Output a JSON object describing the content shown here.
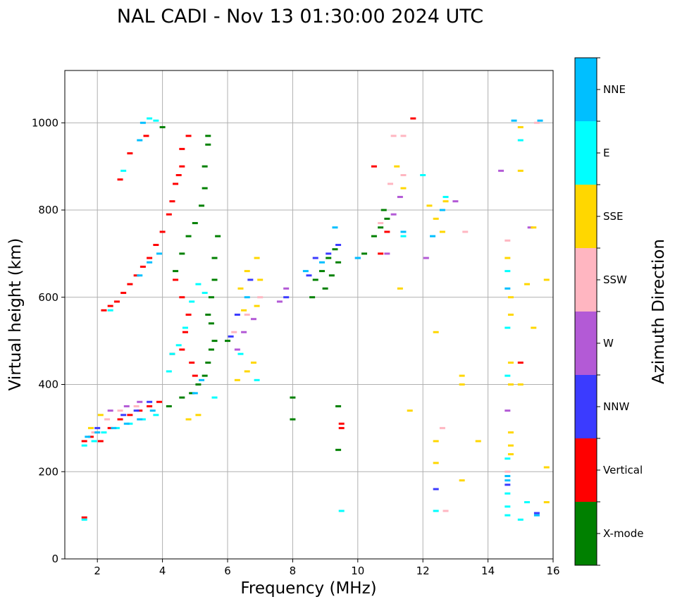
{
  "chart_data": {
    "type": "scatter",
    "title": "NAL CADI - Nov 13 01:30:00 2024 UTC",
    "xlabel": "Frequency (MHz)",
    "ylabel": "Virtual height (km)",
    "xlim": [
      1,
      16
    ],
    "ylim": [
      0,
      1120
    ],
    "xticks": [
      2,
      4,
      6,
      8,
      10,
      12,
      14,
      16
    ],
    "yticks": [
      0,
      200,
      400,
      600,
      800,
      1000
    ],
    "grid": true,
    "colorbar": {
      "label": "Azimuth Direction",
      "categories": [
        {
          "name": "X-mode",
          "color": "#008000"
        },
        {
          "name": "Vertical",
          "color": "#ff0000"
        },
        {
          "name": "NNW",
          "color": "#3b3bff"
        },
        {
          "name": "W",
          "color": "#b35ad6"
        },
        {
          "name": "SSW",
          "color": "#ffb6c1"
        },
        {
          "name": "SSE",
          "color": "#ffd700"
        },
        {
          "name": "E",
          "color": "#00ffff"
        },
        {
          "name": "NNE",
          "color": "#00bfff"
        }
      ]
    },
    "series": [
      {
        "name": "X-mode",
        "points": [
          [
            4.0,
            990
          ],
          [
            4.4,
            660
          ],
          [
            4.6,
            700
          ],
          [
            4.8,
            740
          ],
          [
            5.0,
            770
          ],
          [
            5.2,
            810
          ],
          [
            5.3,
            850
          ],
          [
            5.3,
            900
          ],
          [
            5.4,
            950
          ],
          [
            5.4,
            970
          ],
          [
            4.2,
            350
          ],
          [
            4.6,
            370
          ],
          [
            4.9,
            380
          ],
          [
            5.1,
            400
          ],
          [
            5.3,
            420
          ],
          [
            5.4,
            450
          ],
          [
            5.5,
            480
          ],
          [
            5.6,
            500
          ],
          [
            5.5,
            540
          ],
          [
            5.4,
            560
          ],
          [
            5.5,
            600
          ],
          [
            5.6,
            640
          ],
          [
            5.6,
            690
          ],
          [
            5.7,
            740
          ],
          [
            6.0,
            500
          ],
          [
            8.0,
            370
          ],
          [
            8.0,
            320
          ],
          [
            8.6,
            600
          ],
          [
            8.7,
            640
          ],
          [
            8.9,
            660
          ],
          [
            9.1,
            690
          ],
          [
            9.3,
            710
          ],
          [
            9.0,
            620
          ],
          [
            9.2,
            650
          ],
          [
            9.4,
            680
          ],
          [
            9.4,
            350
          ],
          [
            9.4,
            250
          ],
          [
            10.2,
            700
          ],
          [
            10.5,
            740
          ],
          [
            10.7,
            760
          ],
          [
            10.9,
            780
          ],
          [
            10.8,
            800
          ]
        ]
      },
      {
        "name": "Vertical",
        "points": [
          [
            1.6,
            95
          ],
          [
            1.6,
            270
          ],
          [
            1.8,
            280
          ],
          [
            2.1,
            270
          ],
          [
            2.4,
            300
          ],
          [
            2.7,
            320
          ],
          [
            3.0,
            330
          ],
          [
            3.3,
            340
          ],
          [
            3.6,
            350
          ],
          [
            3.9,
            360
          ],
          [
            2.2,
            570
          ],
          [
            2.4,
            580
          ],
          [
            2.6,
            590
          ],
          [
            2.8,
            610
          ],
          [
            3.0,
            630
          ],
          [
            3.2,
            650
          ],
          [
            3.4,
            670
          ],
          [
            3.6,
            690
          ],
          [
            3.8,
            720
          ],
          [
            4.0,
            750
          ],
          [
            4.2,
            790
          ],
          [
            4.3,
            820
          ],
          [
            4.4,
            860
          ],
          [
            4.5,
            880
          ],
          [
            4.6,
            900
          ],
          [
            4.6,
            940
          ],
          [
            3.5,
            970
          ],
          [
            3.0,
            930
          ],
          [
            2.7,
            870
          ],
          [
            4.8,
            970
          ],
          [
            4.4,
            640
          ],
          [
            4.6,
            600
          ],
          [
            4.8,
            560
          ],
          [
            4.7,
            520
          ],
          [
            4.6,
            480
          ],
          [
            4.9,
            450
          ],
          [
            5.0,
            420
          ],
          [
            4.3,
            470
          ],
          [
            9.5,
            310
          ],
          [
            9.5,
            300
          ],
          [
            10.5,
            900
          ],
          [
            10.7,
            700
          ],
          [
            10.9,
            750
          ],
          [
            11.7,
            1010
          ],
          [
            15.0,
            450
          ]
        ]
      },
      {
        "name": "NNW",
        "points": [
          [
            2.0,
            300
          ],
          [
            2.8,
            330
          ],
          [
            3.2,
            340
          ],
          [
            3.6,
            360
          ],
          [
            6.1,
            510
          ],
          [
            6.3,
            560
          ],
          [
            6.7,
            640
          ],
          [
            7.8,
            600
          ],
          [
            8.5,
            650
          ],
          [
            8.7,
            690
          ],
          [
            9.1,
            700
          ],
          [
            9.4,
            720
          ],
          [
            10.0,
            690
          ],
          [
            12.4,
            160
          ],
          [
            14.6,
            170
          ],
          [
            15.5,
            105
          ]
        ]
      },
      {
        "name": "W",
        "points": [
          [
            2.4,
            340
          ],
          [
            2.9,
            350
          ],
          [
            3.3,
            360
          ],
          [
            6.3,
            480
          ],
          [
            6.5,
            520
          ],
          [
            6.8,
            550
          ],
          [
            7.6,
            590
          ],
          [
            7.8,
            620
          ],
          [
            10.9,
            700
          ],
          [
            11.1,
            790
          ],
          [
            11.3,
            830
          ],
          [
            12.1,
            690
          ],
          [
            13.0,
            820
          ],
          [
            14.4,
            890
          ],
          [
            14.6,
            340
          ],
          [
            15.3,
            760
          ]
        ]
      },
      {
        "name": "SSW",
        "points": [
          [
            1.9,
            290
          ],
          [
            2.3,
            320
          ],
          [
            2.7,
            340
          ],
          [
            3.2,
            350
          ],
          [
            6.2,
            520
          ],
          [
            6.6,
            560
          ],
          [
            7.0,
            600
          ],
          [
            10.7,
            770
          ],
          [
            11.0,
            860
          ],
          [
            11.1,
            970
          ],
          [
            11.4,
            970
          ],
          [
            11.4,
            880
          ],
          [
            12.6,
            300
          ],
          [
            12.7,
            110
          ],
          [
            13.3,
            750
          ],
          [
            14.6,
            730
          ],
          [
            14.6,
            200
          ],
          [
            15.5,
            1000
          ]
        ]
      },
      {
        "name": "SSE",
        "points": [
          [
            1.8,
            300
          ],
          [
            2.1,
            330
          ],
          [
            6.4,
            620
          ],
          [
            6.6,
            660
          ],
          [
            6.9,
            690
          ],
          [
            7.0,
            640
          ],
          [
            6.3,
            410
          ],
          [
            6.6,
            430
          ],
          [
            6.8,
            450
          ],
          [
            6.5,
            570
          ],
          [
            6.9,
            580
          ],
          [
            5.1,
            330
          ],
          [
            4.8,
            320
          ],
          [
            11.2,
            900
          ],
          [
            11.3,
            620
          ],
          [
            11.4,
            850
          ],
          [
            11.6,
            340
          ],
          [
            12.2,
            810
          ],
          [
            12.4,
            780
          ],
          [
            12.6,
            750
          ],
          [
            12.7,
            820
          ],
          [
            12.4,
            520
          ],
          [
            12.4,
            270
          ],
          [
            12.4,
            220
          ],
          [
            13.2,
            420
          ],
          [
            13.2,
            400
          ],
          [
            13.2,
            180
          ],
          [
            13.7,
            270
          ],
          [
            14.6,
            690
          ],
          [
            14.7,
            600
          ],
          [
            14.7,
            560
          ],
          [
            14.7,
            450
          ],
          [
            14.7,
            400
          ],
          [
            14.7,
            290
          ],
          [
            14.7,
            260
          ],
          [
            14.7,
            240
          ],
          [
            15.0,
            990
          ],
          [
            15.0,
            890
          ],
          [
            15.0,
            400
          ],
          [
            15.2,
            630
          ],
          [
            15.4,
            760
          ],
          [
            15.4,
            530
          ],
          [
            15.8,
            640
          ],
          [
            15.8,
            210
          ],
          [
            15.8,
            130
          ]
        ]
      },
      {
        "name": "E",
        "points": [
          [
            1.6,
            90
          ],
          [
            1.6,
            260
          ],
          [
            1.9,
            270
          ],
          [
            2.2,
            290
          ],
          [
            2.6,
            300
          ],
          [
            3.0,
            310
          ],
          [
            3.4,
            320
          ],
          [
            3.8,
            330
          ],
          [
            2.8,
            890
          ],
          [
            2.4,
            570
          ],
          [
            3.6,
            1010
          ],
          [
            3.8,
            1005
          ],
          [
            4.2,
            430
          ],
          [
            4.3,
            470
          ],
          [
            4.5,
            490
          ],
          [
            4.7,
            530
          ],
          [
            4.9,
            590
          ],
          [
            5.1,
            630
          ],
          [
            5.3,
            610
          ],
          [
            5.6,
            370
          ],
          [
            6.4,
            470
          ],
          [
            6.9,
            410
          ],
          [
            9.5,
            110
          ],
          [
            11.4,
            740
          ],
          [
            12.0,
            880
          ],
          [
            12.4,
            110
          ],
          [
            12.7,
            830
          ],
          [
            14.6,
            660
          ],
          [
            14.6,
            530
          ],
          [
            14.6,
            420
          ],
          [
            14.6,
            230
          ],
          [
            14.6,
            150
          ],
          [
            14.6,
            120
          ],
          [
            14.6,
            100
          ],
          [
            15.0,
            960
          ],
          [
            15.0,
            90
          ],
          [
            15.2,
            130
          ]
        ]
      },
      {
        "name": "NNE",
        "points": [
          [
            1.7,
            280
          ],
          [
            2.0,
            290
          ],
          [
            2.5,
            300
          ],
          [
            2.9,
            310
          ],
          [
            3.3,
            320
          ],
          [
            3.7,
            340
          ],
          [
            3.3,
            650
          ],
          [
            3.6,
            680
          ],
          [
            3.9,
            700
          ],
          [
            3.3,
            960
          ],
          [
            3.4,
            1000
          ],
          [
            5.0,
            380
          ],
          [
            5.2,
            410
          ],
          [
            6.6,
            600
          ],
          [
            8.4,
            660
          ],
          [
            8.9,
            680
          ],
          [
            9.3,
            760
          ],
          [
            10.0,
            690
          ],
          [
            11.4,
            750
          ],
          [
            12.3,
            740
          ],
          [
            12.6,
            800
          ],
          [
            14.6,
            620
          ],
          [
            14.6,
            180
          ],
          [
            14.6,
            190
          ],
          [
            14.8,
            1005
          ],
          [
            15.6,
            1005
          ],
          [
            15.5,
            100
          ]
        ]
      }
    ]
  }
}
